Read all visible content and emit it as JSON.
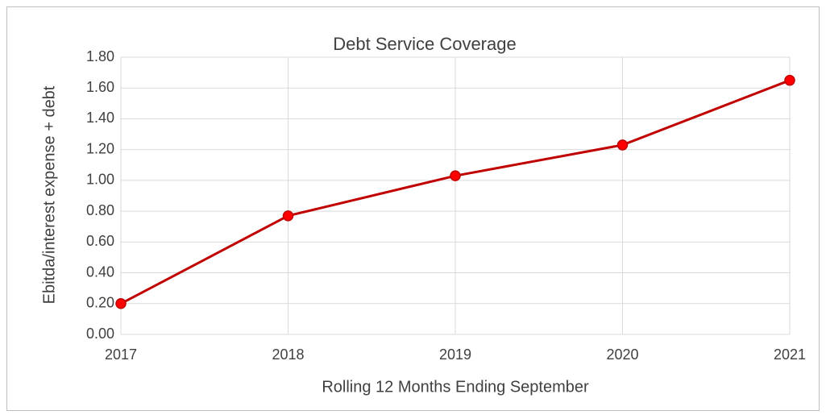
{
  "chart_data": {
    "type": "line",
    "title": "Debt Service Coverage",
    "x_label": "Rolling 12 Months Ending September",
    "y_label": "Ebitda/interest expense + debt",
    "categories": [
      "2017",
      "2018",
      "2019",
      "2020",
      "2021"
    ],
    "series": [
      {
        "name": "Debt Service Coverage",
        "color": "#c00000",
        "marker_color": "#ff0000",
        "values": [
          0.2,
          0.77,
          1.03,
          1.23,
          1.65
        ]
      }
    ],
    "ylim": [
      0,
      1.8
    ],
    "yticks": [
      {
        "value": 0,
        "label": "0.00"
      },
      {
        "value": 0.2,
        "label": "0.20"
      },
      {
        "value": 0.4,
        "label": "0.40"
      },
      {
        "value": 0.6,
        "label": "0.60"
      },
      {
        "value": 0.8,
        "label": "0.80"
      },
      {
        "value": 1.0,
        "label": "1.00"
      },
      {
        "value": 1.2,
        "label": "1.20"
      },
      {
        "value": 1.4,
        "label": "1.40"
      },
      {
        "value": 1.6,
        "label": "1.60"
      },
      {
        "value": 1.8,
        "label": "1.80"
      }
    ],
    "grid": true
  }
}
